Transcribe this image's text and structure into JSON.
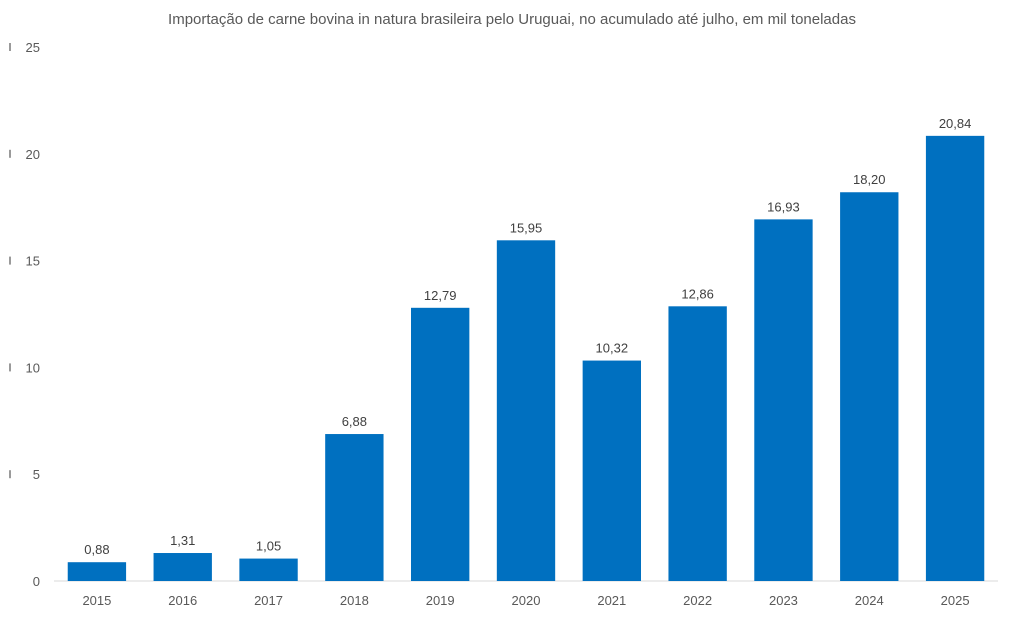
{
  "chart_data": {
    "type": "bar",
    "title": "Importação de carne bovina in natura brasileira pelo Uruguai, no acumulado até julho, em mil toneladas",
    "categories": [
      "2015",
      "2016",
      "2017",
      "2018",
      "2019",
      "2020",
      "2021",
      "2022",
      "2023",
      "2024",
      "2025"
    ],
    "values": [
      0.88,
      1.31,
      1.05,
      6.88,
      12.79,
      15.95,
      10.32,
      12.86,
      16.93,
      18.2,
      20.84
    ],
    "data_labels": [
      "0,88",
      "1,31",
      "1,05",
      "6,88",
      "12,79",
      "15,95",
      "10,32",
      "12,86",
      "16,93",
      "18,20",
      "20,84"
    ],
    "ylim": [
      0,
      25
    ],
    "yticks": [
      0,
      5,
      10,
      15,
      20,
      25
    ],
    "grid": false,
    "bar_color": "#0070C0",
    "axis_color": "#d9d9d9"
  }
}
